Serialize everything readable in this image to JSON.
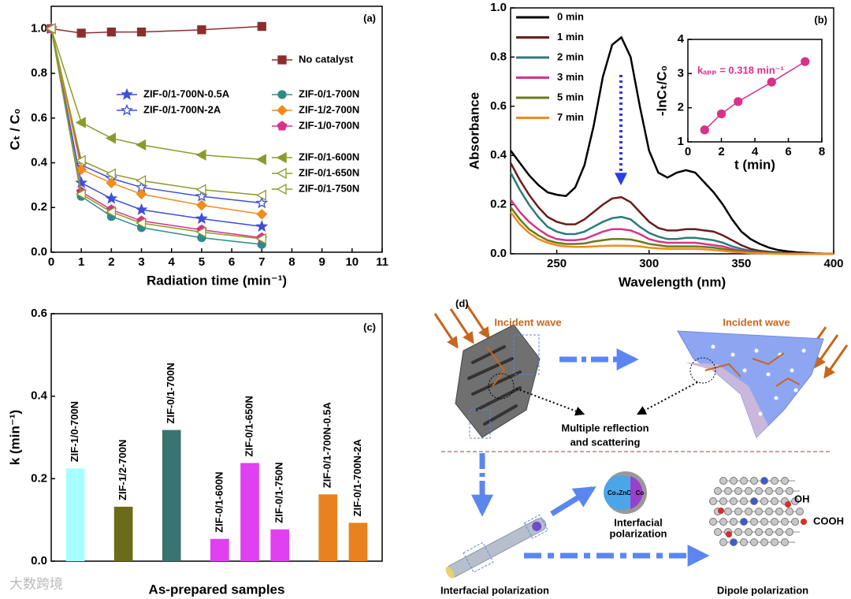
{
  "chart_data": [
    {
      "type": "line",
      "annotation": "(a)",
      "xlabel": "Radiation time (min⁻¹)",
      "ylabel": "Cₜ / C₀",
      "x": [
        0,
        1,
        2,
        3,
        5,
        7
      ],
      "xlim": [
        0,
        11
      ],
      "xticks": [
        0,
        1,
        2,
        3,
        4,
        5,
        6,
        7,
        8,
        9,
        10,
        11
      ],
      "ylim": [
        0,
        1.1
      ],
      "yticks": [
        {
          "value": 0,
          "label": "0.0"
        },
        0.2,
        0.4,
        0.6,
        0.8,
        {
          "value": 1,
          "label": "1.0"
        }
      ],
      "series": [
        {
          "name": "No catalyst",
          "color": "#8b2e2e",
          "marker": "square",
          "values": [
            1.0,
            0.98,
            0.985,
            0.985,
            0.995,
            1.01
          ]
        },
        {
          "name": "ZIF-0/1-700N-0.5A",
          "color": "#3d4fd6",
          "marker": "star",
          "values": [
            1.0,
            0.31,
            0.24,
            0.19,
            0.15,
            0.115
          ]
        },
        {
          "name": "ZIF-0/1-700N-2A",
          "color": "#3d4fd6",
          "marker": "star-open",
          "values": [
            1.0,
            0.39,
            0.33,
            0.29,
            0.25,
            0.22
          ]
        },
        {
          "name": "ZIF-0/1-700N",
          "color": "#2e8b8b",
          "marker": "circle",
          "values": [
            1.0,
            0.25,
            0.16,
            0.11,
            0.065,
            0.035
          ]
        },
        {
          "name": "ZIF-1/2-700N",
          "color": "#f08c1a",
          "marker": "diamond",
          "values": [
            1.0,
            0.37,
            0.31,
            0.26,
            0.21,
            0.17
          ]
        },
        {
          "name": "ZIF-1/0-700N",
          "color": "#d6338a",
          "marker": "pentagon",
          "values": [
            1.0,
            0.27,
            0.19,
            0.14,
            0.1,
            0.065
          ]
        },
        {
          "name": "ZIF-0/1-600N",
          "color": "#8c9a2a",
          "marker": "tri",
          "values": [
            1.0,
            0.58,
            0.51,
            0.48,
            0.435,
            0.415
          ]
        },
        {
          "name": "ZIF-0/1-650N",
          "color": "#8c9a2a",
          "marker": "tri-open",
          "values": [
            1.0,
            0.26,
            0.18,
            0.13,
            0.09,
            0.06
          ]
        },
        {
          "name": "ZIF-0/1-750N",
          "color": "#8c9a2a",
          "marker": "tri-open",
          "values": [
            1.0,
            0.41,
            0.35,
            0.32,
            0.28,
            0.255
          ]
        }
      ]
    },
    {
      "type": "line",
      "annotation": "(b)",
      "xlabel": "Wavelength (nm)",
      "ylabel": "Absorbance",
      "x": [
        225,
        230,
        235,
        240,
        245,
        250,
        255,
        260,
        265,
        270,
        275,
        280,
        285,
        290,
        295,
        300,
        305,
        310,
        315,
        320,
        325,
        330,
        335,
        340,
        345,
        350,
        355,
        360,
        365,
        370,
        375,
        380,
        385,
        390,
        395,
        400
      ],
      "xlim": [
        225,
        400
      ],
      "xticks": [
        250,
        300,
        350,
        400
      ],
      "ylim": [
        0,
        1.0
      ],
      "yticks": [
        {
          "value": 0,
          "label": "0.0"
        },
        0.2,
        0.4,
        0.6,
        0.8,
        {
          "value": 1,
          "label": "1.0"
        }
      ],
      "series": [
        {
          "name": "0 min",
          "color": "#000000",
          "values": [
            0.42,
            0.37,
            0.32,
            0.28,
            0.25,
            0.24,
            0.235,
            0.27,
            0.36,
            0.52,
            0.72,
            0.85,
            0.88,
            0.8,
            0.6,
            0.42,
            0.33,
            0.31,
            0.33,
            0.34,
            0.33,
            0.29,
            0.25,
            0.2,
            0.14,
            0.09,
            0.06,
            0.04,
            0.025,
            0.015,
            0.01,
            0.006,
            0.004,
            0.002,
            0.001,
            0
          ]
        },
        {
          "name": "1 min",
          "color": "#6b1c1c",
          "values": [
            0.37,
            0.3,
            0.24,
            0.19,
            0.15,
            0.13,
            0.12,
            0.12,
            0.14,
            0.17,
            0.2,
            0.225,
            0.23,
            0.21,
            0.17,
            0.13,
            0.105,
            0.095,
            0.095,
            0.1,
            0.1,
            0.095,
            0.09,
            0.075,
            0.055,
            0.035,
            0.02,
            0.012,
            0.008,
            0.005,
            0.003,
            0.002,
            0.001,
            0.001,
            0,
            0
          ]
        },
        {
          "name": "2 min",
          "color": "#2e7a7a",
          "values": [
            0.33,
            0.26,
            0.2,
            0.15,
            0.11,
            0.09,
            0.08,
            0.08,
            0.09,
            0.11,
            0.13,
            0.145,
            0.15,
            0.14,
            0.11,
            0.085,
            0.07,
            0.06,
            0.06,
            0.065,
            0.065,
            0.06,
            0.055,
            0.045,
            0.03,
            0.02,
            0.012,
            0.007,
            0.004,
            0.002,
            0.001,
            0.001,
            0,
            0,
            0,
            0
          ]
        },
        {
          "name": "3 min",
          "color": "#d6338a",
          "values": [
            0.22,
            0.17,
            0.13,
            0.1,
            0.075,
            0.06,
            0.055,
            0.055,
            0.06,
            0.075,
            0.09,
            0.1,
            0.1,
            0.095,
            0.08,
            0.06,
            0.05,
            0.045,
            0.045,
            0.045,
            0.045,
            0.04,
            0.035,
            0.03,
            0.02,
            0.012,
            0.007,
            0.004,
            0.002,
            0.001,
            0,
            0,
            0,
            0,
            0,
            0
          ]
        },
        {
          "name": "5 min",
          "color": "#6b7a1a",
          "values": [
            0.19,
            0.14,
            0.1,
            0.075,
            0.055,
            0.045,
            0.04,
            0.04,
            0.042,
            0.05,
            0.055,
            0.06,
            0.06,
            0.058,
            0.05,
            0.04,
            0.035,
            0.03,
            0.03,
            0.03,
            0.03,
            0.028,
            0.025,
            0.02,
            0.014,
            0.008,
            0.005,
            0.003,
            0.002,
            0.001,
            0,
            0,
            0,
            0,
            0,
            0
          ]
        },
        {
          "name": "7 min",
          "color": "#f08c1a",
          "values": [
            0.17,
            0.12,
            0.085,
            0.06,
            0.045,
            0.035,
            0.03,
            0.028,
            0.028,
            0.03,
            0.032,
            0.033,
            0.033,
            0.032,
            0.03,
            0.025,
            0.022,
            0.02,
            0.02,
            0.02,
            0.02,
            0.018,
            0.015,
            0.012,
            0.008,
            0.005,
            0.003,
            0.002,
            0.001,
            0,
            0,
            0,
            0,
            0,
            0,
            0
          ]
        }
      ]
    },
    {
      "type": "line",
      "annotation": "kₐₚₚ = 0.318 min⁻¹",
      "xlabel": "t (min)",
      "ylabel": "-lnCₜ/C₀",
      "x": [
        1,
        2,
        3,
        5,
        7
      ],
      "xlim": [
        0,
        8
      ],
      "xticks": [
        0,
        2,
        4,
        6,
        8
      ],
      "ylim": [
        1,
        4
      ],
      "yticks": [
        1,
        2,
        3,
        4
      ],
      "series": [
        {
          "color": "#d6338a",
          "marker": "circle",
          "values": [
            1.35,
            1.82,
            2.18,
            2.75,
            3.35
          ]
        }
      ]
    },
    {
      "type": "bar",
      "annotation": "(c)",
      "xlabel": "As-prepared samples",
      "ylabel": "k (min⁻¹)",
      "categories": [
        "ZIF-1/0-700N",
        "ZIF-1/2-700N",
        "ZIF-0/1-700N",
        "ZIF-0/1-600N",
        "ZIF-0/1-650N",
        "ZIF-0/1-750N",
        "ZIF-0/1-700N-0.5A",
        "ZIF-0/1-700N-2A"
      ],
      "values": [
        0.225,
        0.132,
        0.318,
        0.054,
        0.238,
        0.077,
        0.162,
        0.093
      ],
      "colors": [
        "#a8ffff",
        "#6b6b1a",
        "#3a7470",
        "#e040f0",
        "#e040f0",
        "#e040f0",
        "#e8821e",
        "#e8821e"
      ],
      "ylim": [
        0,
        0.6
      ],
      "yticks": [
        {
          "value": 0,
          "label": "0.0"
        },
        0.2,
        0.4,
        0.6
      ]
    }
  ],
  "diagram": {
    "label": "(d)",
    "incident_left": "Incident wave",
    "incident_right": "Incident wave",
    "reflection": [
      "Multiple reflection",
      "and scattering"
    ],
    "core": "Co₃ZnC",
    "shell": "Co",
    "interfacial_small": [
      "Interfacial",
      "polarization"
    ],
    "oh": "OH",
    "cooh": "COOH",
    "interfacial": "Interfacial polarization",
    "dipole": "Dipole polarization"
  },
  "watermark": "大数跨境"
}
